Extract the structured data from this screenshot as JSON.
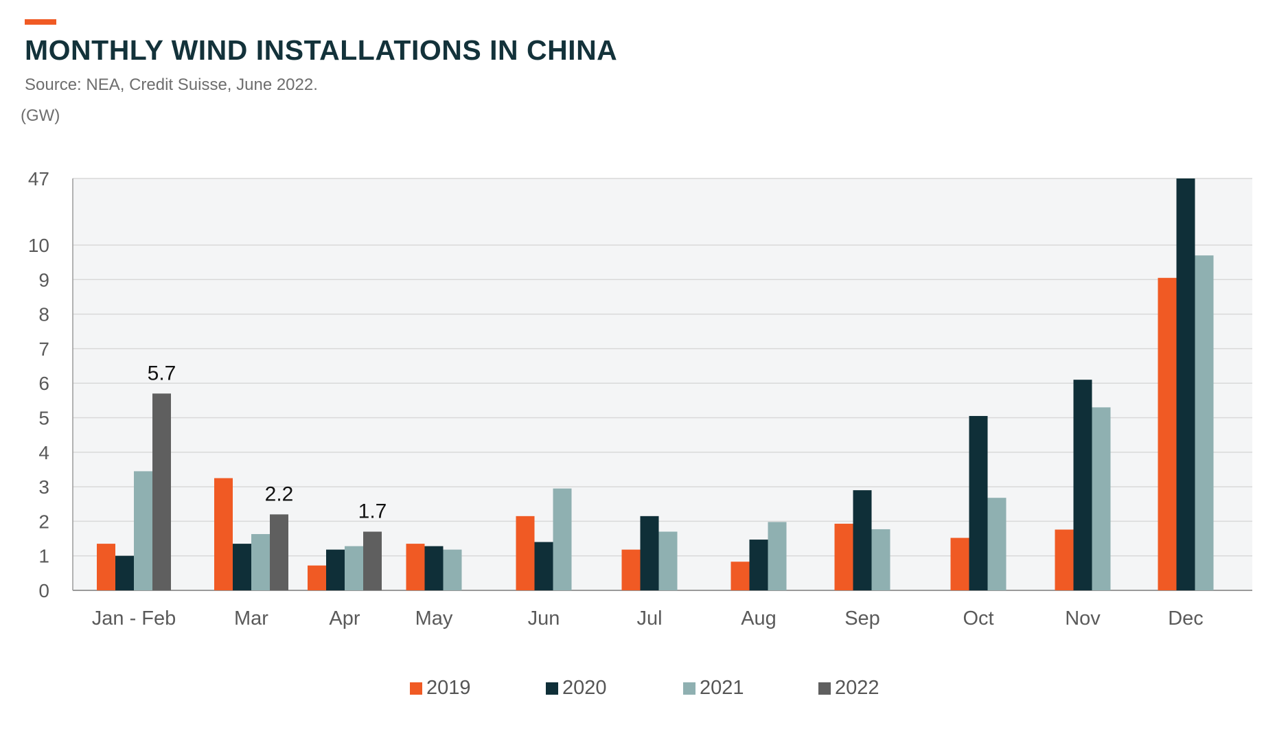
{
  "header": {
    "title": "MONTHLY WIND INSTALLATIONS IN CHINA",
    "subtitle": "Source: NEA, Credit Suisse, June 2022.",
    "unit_label": "(GW)",
    "accent_color": "#f05a24"
  },
  "chart_data": {
    "type": "bar",
    "categories": [
      "Jan - Feb",
      "Mar",
      "Apr",
      "May",
      "Jun",
      "Jul",
      "Aug",
      "Sep",
      "Oct",
      "Nov",
      "Dec"
    ],
    "series": [
      {
        "name": "2019",
        "color": "#f05a24",
        "values": [
          1.35,
          3.25,
          0.72,
          1.35,
          2.15,
          1.18,
          0.83,
          1.93,
          1.52,
          1.76,
          9.05
        ]
      },
      {
        "name": "2020",
        "color": "#0f2f38",
        "values": [
          1.0,
          1.35,
          1.18,
          1.28,
          1.4,
          2.15,
          1.47,
          2.9,
          5.05,
          6.1,
          47
        ]
      },
      {
        "name": "2021",
        "color": "#8fb0b1",
        "values": [
          3.45,
          1.63,
          1.28,
          1.18,
          2.95,
          1.7,
          1.98,
          1.77,
          2.68,
          5.3,
          9.7
        ]
      },
      {
        "name": "2022",
        "color": "#5f5f5f",
        "values": [
          5.7,
          2.2,
          1.7,
          null,
          null,
          null,
          null,
          null,
          null,
          null,
          null
        ]
      }
    ],
    "data_labels": [
      {
        "series": "2022",
        "category": "Jan - Feb",
        "text": "5.7"
      },
      {
        "series": "2022",
        "category": "Mar",
        "text": "2.2"
      },
      {
        "series": "2022",
        "category": "Apr",
        "text": "1.7"
      }
    ],
    "yticks": [
      "0",
      "1",
      "2",
      "3",
      "4",
      "5",
      "6",
      "7",
      "8",
      "9",
      "10",
      "47"
    ],
    "ylim": [
      0,
      47
    ],
    "y_axis_break": "linear 0–10, compressed 10–47",
    "grid": true,
    "plot_background": "#f4f5f6",
    "legend_position": "bottom"
  }
}
